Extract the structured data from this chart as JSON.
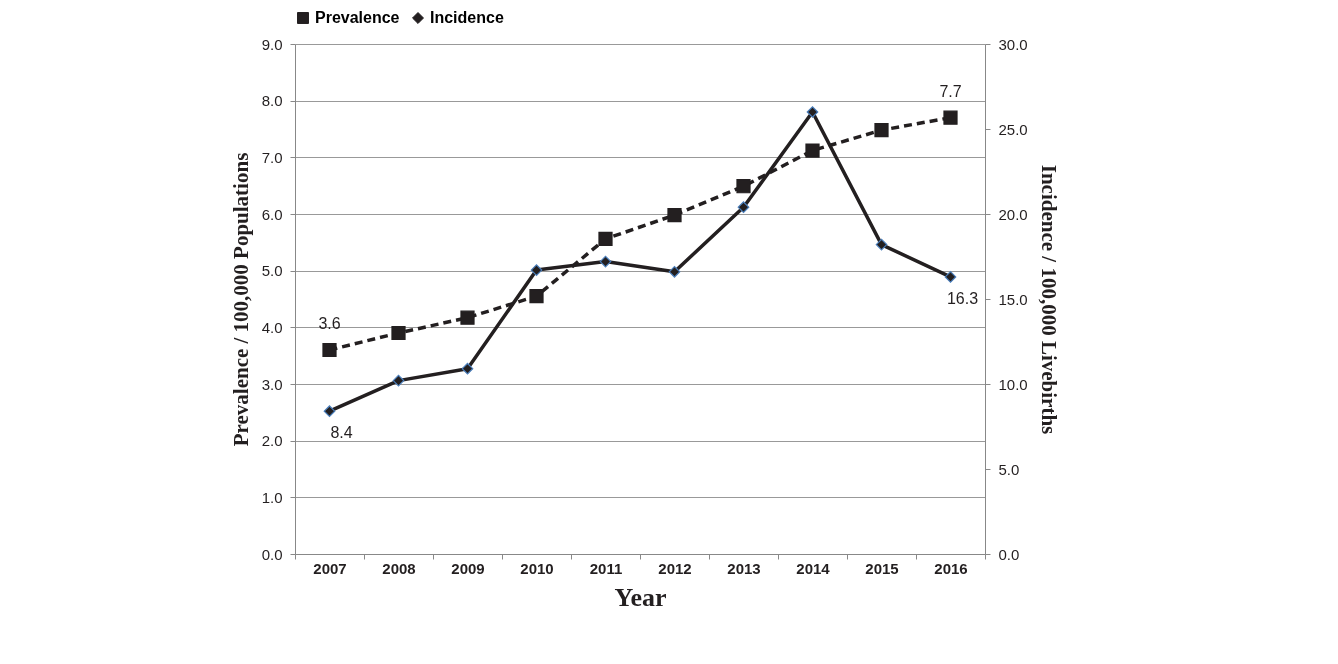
{
  "chart_data": {
    "type": "line",
    "xlabel": "Year",
    "ylabel": "Prevalence / 100,000 Populations",
    "y2label": "Incidence / 100,000 Livebirths",
    "categories": [
      "2007",
      "2008",
      "2009",
      "2010",
      "2011",
      "2012",
      "2013",
      "2014",
      "2015",
      "2016"
    ],
    "series": [
      {
        "name": "Prevalence",
        "color": "#231f20",
        "marker": "square",
        "line_style": "dashed",
        "values": [
          3.6,
          3.9,
          4.17,
          4.55,
          5.56,
          5.98,
          6.49,
          7.12,
          7.48,
          7.7
        ],
        "value_labels": [
          "3.6",
          null,
          null,
          null,
          null,
          null,
          null,
          null,
          null,
          "7.7"
        ]
      },
      {
        "name": "Incidence",
        "color": "#231f20",
        "marker": "diamond",
        "line_style": "solid",
        "axis": "y2",
        "values": [
          8.4,
          10.2,
          10.9,
          16.7,
          17.2,
          16.6,
          20.4,
          26.0,
          18.2,
          16.3
        ],
        "value_labels": [
          "8.4",
          null,
          null,
          null,
          null,
          null,
          null,
          null,
          null,
          "16.3"
        ]
      }
    ],
    "ylim": [
      0,
      9
    ],
    "yticks": [
      {
        "value": 0,
        "label": "0.0"
      },
      {
        "value": 1,
        "label": "1.0"
      },
      {
        "value": 2,
        "label": "2.0"
      },
      {
        "value": 3,
        "label": "3.0"
      },
      {
        "value": 4,
        "label": "4.0"
      },
      {
        "value": 5,
        "label": "5.0"
      },
      {
        "value": 6,
        "label": "6.0"
      },
      {
        "value": 7,
        "label": "7.0"
      },
      {
        "value": 8,
        "label": "8.0"
      },
      {
        "value": 9,
        "label": "9.0"
      }
    ],
    "y2lim": [
      0,
      30
    ],
    "y2ticks": [
      {
        "value": 0,
        "label": "0.0"
      },
      {
        "value": 5,
        "label": "5.0"
      },
      {
        "value": 10,
        "label": "10.0"
      },
      {
        "value": 15,
        "label": "15.0"
      },
      {
        "value": 20,
        "label": "20.0"
      },
      {
        "value": 25,
        "label": "25.0"
      },
      {
        "value": 30,
        "label": "30.0"
      }
    ],
    "grid": "y",
    "legend": "top"
  }
}
